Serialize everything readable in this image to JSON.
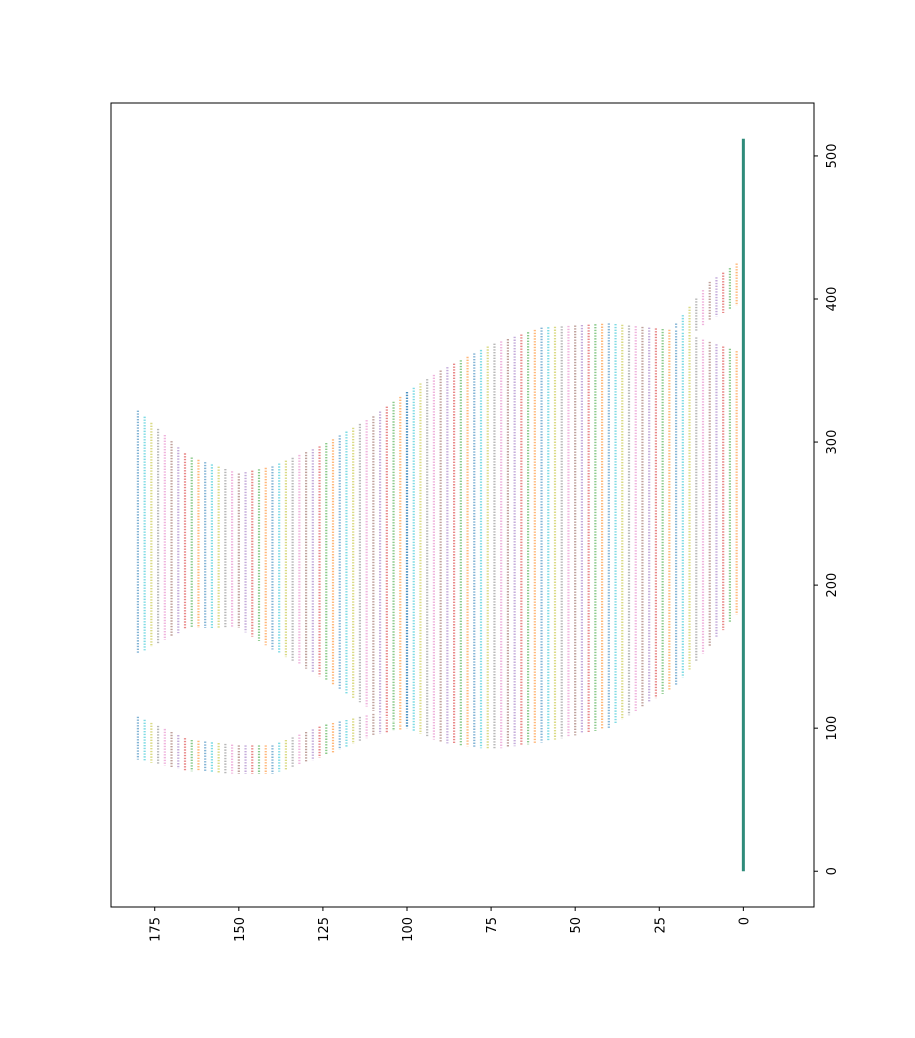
{
  "chart_data": {
    "type": "scatter",
    "title": "",
    "xlabel": "",
    "ylabel": "",
    "orientation": "rotated-90",
    "notes": "Dense dotted vertical columns for x values 0..180, colored with matplotlib tab10 palette, each column spanning y ranges below. Dense point series along x=0 for y 0..512.",
    "x_axis": {
      "ticks": [
        0,
        25,
        50,
        75,
        100,
        125,
        150,
        175
      ],
      "lim": [
        -21,
        188
      ]
    },
    "y_axis": {
      "ticks": [
        0,
        100,
        200,
        300,
        400,
        500
      ],
      "lim": [
        -25,
        537
      ]
    },
    "x_column_step": 2,
    "x_max": 180,
    "regions": [
      {
        "name": "lower-left lobe",
        "x_range": [
          100,
          180
        ],
        "y_lower": [
          [
            100,
            100
          ],
          [
            110,
            95
          ],
          [
            125,
            80
          ],
          [
            140,
            68
          ],
          [
            150,
            68
          ],
          [
            165,
            70
          ],
          [
            180,
            78
          ]
        ],
        "y_upper": [
          [
            100,
            100
          ],
          [
            110,
            110
          ],
          [
            125,
            102
          ],
          [
            140,
            88
          ],
          [
            150,
            88
          ],
          [
            165,
            92
          ],
          [
            180,
            108
          ]
        ]
      },
      {
        "name": "upper-left lobe",
        "x_range": [
          100,
          180
        ],
        "y_lower": [
          [
            100,
            100
          ],
          [
            110,
            112
          ],
          [
            125,
            135
          ],
          [
            140,
            155
          ],
          [
            150,
            170
          ],
          [
            165,
            170
          ],
          [
            180,
            152
          ]
        ],
        "y_upper": [
          [
            100,
            335
          ],
          [
            110,
            318
          ],
          [
            125,
            298
          ],
          [
            140,
            283
          ],
          [
            150,
            278
          ],
          [
            165,
            290
          ],
          [
            180,
            322
          ]
        ]
      },
      {
        "name": "main body",
        "x_range": [
          0,
          100
        ],
        "y_lower": [
          [
            0,
            185
          ],
          [
            20,
            130
          ],
          [
            40,
            100
          ],
          [
            60,
            90
          ],
          [
            75,
            85
          ],
          [
            90,
            90
          ],
          [
            100,
            100
          ]
        ],
        "y_upper": [
          [
            0,
            362
          ],
          [
            20,
            378
          ],
          [
            40,
            383
          ],
          [
            60,
            380
          ],
          [
            75,
            368
          ],
          [
            90,
            350
          ],
          [
            100,
            335
          ]
        ]
      },
      {
        "name": "tail",
        "x_range": [
          0,
          21
        ],
        "y_lower": [
          [
            0,
            398
          ],
          [
            10,
            385
          ],
          [
            15,
            375
          ],
          [
            21,
            380
          ]
        ],
        "y_upper": [
          [
            0,
            428
          ],
          [
            10,
            412
          ],
          [
            21,
            380
          ]
        ]
      }
    ],
    "baseline_series": {
      "x": 0,
      "y_range": [
        0,
        512
      ]
    },
    "colors": [
      "#1f77b4",
      "#ff7f0e",
      "#2ca02c",
      "#d62728",
      "#9467bd",
      "#8c564b",
      "#e377c2",
      "#7f7f7f",
      "#bcbd22",
      "#17becf"
    ],
    "baseline_color": "#2e8b7a",
    "grid": false,
    "legend": "none"
  }
}
